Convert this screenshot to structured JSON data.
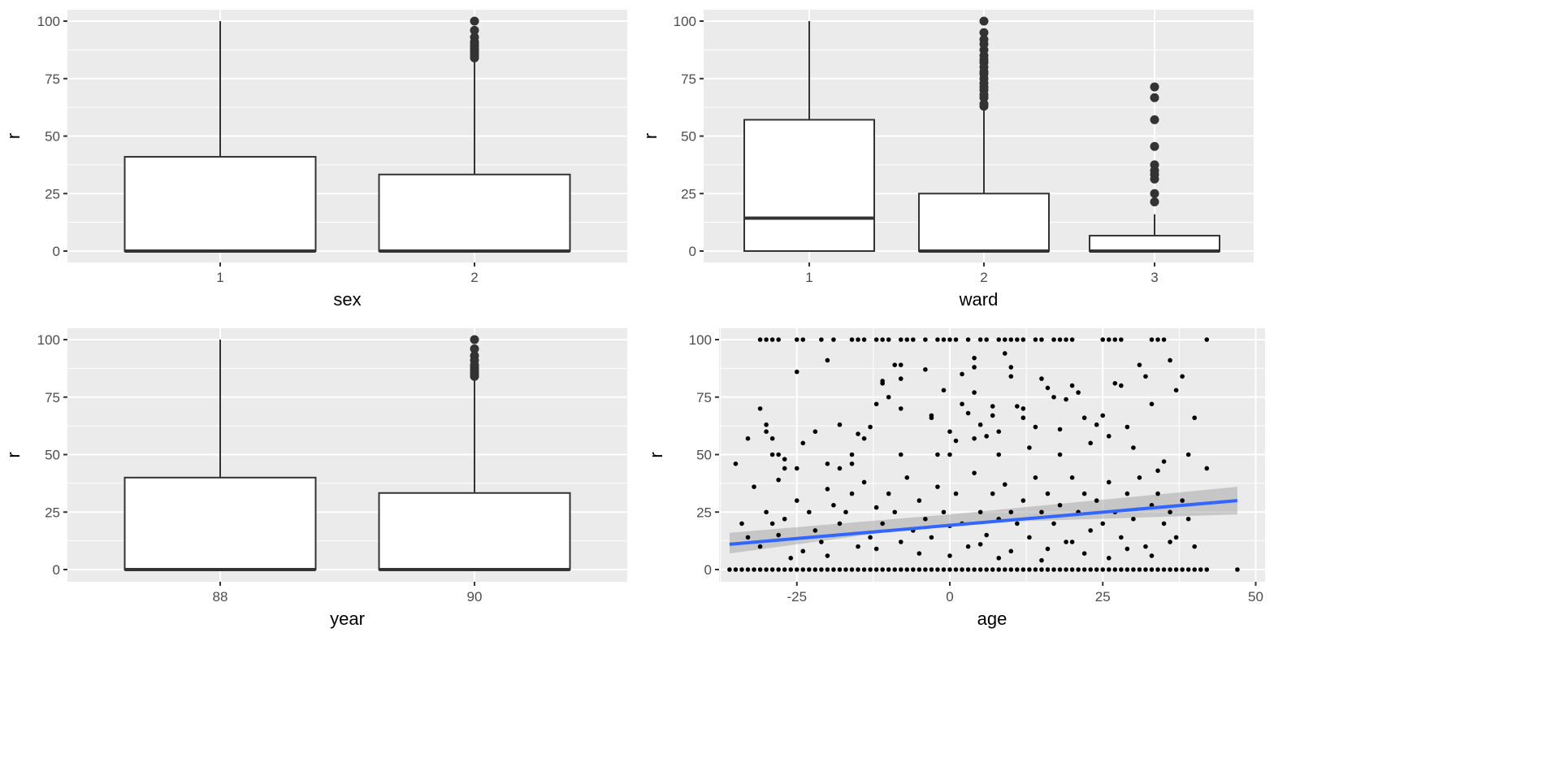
{
  "chart_data": [
    {
      "type": "box",
      "xlabel": "sex",
      "ylabel": "r",
      "ylim": [
        0,
        100
      ],
      "yticks": [
        "0",
        "25",
        "50",
        "75",
        "100"
      ],
      "categories": [
        "1",
        "2"
      ],
      "boxes": [
        {
          "min": 0,
          "q1": 0,
          "median": 0,
          "q3": 41,
          "max": 100,
          "outliers": []
        },
        {
          "min": 0,
          "q1": 0,
          "median": 0,
          "q3": 33.3,
          "max": 83,
          "outliers": [
            84,
            85,
            86,
            87,
            87.5,
            88,
            89,
            90,
            91,
            93,
            96,
            100
          ]
        }
      ]
    },
    {
      "type": "box",
      "xlabel": "ward",
      "ylabel": "r",
      "ylim": [
        0,
        100
      ],
      "yticks": [
        "0",
        "25",
        "50",
        "75",
        "100"
      ],
      "categories": [
        "1",
        "2",
        "3"
      ],
      "boxes": [
        {
          "min": 0,
          "q1": 0,
          "median": 14.3,
          "q3": 57.1,
          "max": 100,
          "outliers": []
        },
        {
          "min": 0,
          "q1": 0,
          "median": 0,
          "q3": 25,
          "max": 62,
          "outliers": [
            63,
            64,
            66.7,
            68,
            70,
            71.4,
            73,
            75,
            77,
            78,
            80,
            82,
            83.3,
            85,
            87.5,
            90,
            92,
            95,
            100
          ]
        },
        {
          "min": 0,
          "q1": 0,
          "median": 0,
          "q3": 6.7,
          "max": 16,
          "outliers": [
            21.4,
            25,
            31.3,
            33.3,
            35,
            37.5,
            45.5,
            57.1,
            66.7,
            71.4
          ]
        }
      ]
    },
    {
      "type": "box",
      "xlabel": "year",
      "ylabel": "r",
      "ylim": [
        0,
        100
      ],
      "yticks": [
        "0",
        "25",
        "50",
        "75",
        "100"
      ],
      "categories": [
        "88",
        "90"
      ],
      "boxes": [
        {
          "min": 0,
          "q1": 0,
          "median": 0,
          "q3": 40,
          "max": 100,
          "outliers": []
        },
        {
          "min": 0,
          "q1": 0,
          "median": 0,
          "q3": 33.3,
          "max": 83,
          "outliers": [
            84,
            85,
            86,
            87,
            88,
            89,
            91,
            93,
            96,
            100
          ]
        }
      ]
    },
    {
      "type": "scatter",
      "xlabel": "age",
      "ylabel": "r",
      "xlim": [
        -38,
        50
      ],
      "ylim": [
        0,
        100
      ],
      "xticks": [
        "-25",
        "0",
        "25",
        "50"
      ],
      "yticks": [
        "0",
        "25",
        "50",
        "75",
        "100"
      ],
      "smooth": {
        "method": "lm",
        "x": [
          -36,
          47
        ],
        "y": [
          11,
          30
        ],
        "ci_low": [
          7,
          24
        ],
        "ci_high": [
          16,
          36
        ],
        "ci_mid": [
          20,
          24
        ],
        "color": "#3366ff"
      },
      "points": [
        [
          -36,
          0
        ],
        [
          -35,
          0
        ],
        [
          -34,
          0
        ],
        [
          -33,
          0
        ],
        [
          -32,
          0
        ],
        [
          -31,
          0
        ],
        [
          -30,
          0
        ],
        [
          -29,
          0
        ],
        [
          -28,
          0
        ],
        [
          -27,
          0
        ],
        [
          -26,
          0
        ],
        [
          -25,
          0
        ],
        [
          -24,
          0
        ],
        [
          -23,
          0
        ],
        [
          -22,
          0
        ],
        [
          -21,
          0
        ],
        [
          -20,
          0
        ],
        [
          -19,
          0
        ],
        [
          -18,
          0
        ],
        [
          -17,
          0
        ],
        [
          -16,
          0
        ],
        [
          -15,
          0
        ],
        [
          -14,
          0
        ],
        [
          -13,
          0
        ],
        [
          -12,
          0
        ],
        [
          -11,
          0
        ],
        [
          -10,
          0
        ],
        [
          -9,
          0
        ],
        [
          -8,
          0
        ],
        [
          -7,
          0
        ],
        [
          -6,
          0
        ],
        [
          -5,
          0
        ],
        [
          -4,
          0
        ],
        [
          -3,
          0
        ],
        [
          -2,
          0
        ],
        [
          -1,
          0
        ],
        [
          0,
          0
        ],
        [
          1,
          0
        ],
        [
          2,
          0
        ],
        [
          3,
          0
        ],
        [
          4,
          0
        ],
        [
          5,
          0
        ],
        [
          6,
          0
        ],
        [
          7,
          0
        ],
        [
          8,
          0
        ],
        [
          9,
          0
        ],
        [
          10,
          0
        ],
        [
          11,
          0
        ],
        [
          12,
          0
        ],
        [
          13,
          0
        ],
        [
          14,
          0
        ],
        [
          15,
          0
        ],
        [
          16,
          0
        ],
        [
          17,
          0
        ],
        [
          18,
          0
        ],
        [
          19,
          0
        ],
        [
          20,
          0
        ],
        [
          21,
          0
        ],
        [
          22,
          0
        ],
        [
          23,
          0
        ],
        [
          24,
          0
        ],
        [
          25,
          0
        ],
        [
          26,
          0
        ],
        [
          27,
          0
        ],
        [
          28,
          0
        ],
        [
          29,
          0
        ],
        [
          30,
          0
        ],
        [
          31,
          0
        ],
        [
          32,
          0
        ],
        [
          33,
          0
        ],
        [
          34,
          0
        ],
        [
          35,
          0
        ],
        [
          36,
          0
        ],
        [
          37,
          0
        ],
        [
          38,
          0
        ],
        [
          39,
          0
        ],
        [
          40,
          0
        ],
        [
          41,
          0
        ],
        [
          42,
          0
        ],
        [
          47,
          0
        ],
        [
          -31,
          100
        ],
        [
          -30,
          100
        ],
        [
          -29,
          100
        ],
        [
          -28,
          100
        ],
        [
          -25,
          100
        ],
        [
          -24,
          100
        ],
        [
          -21,
          100
        ],
        [
          -19,
          100
        ],
        [
          -16,
          100
        ],
        [
          -15,
          100
        ],
        [
          -14,
          100
        ],
        [
          -12,
          100
        ],
        [
          -11,
          100
        ],
        [
          -10,
          100
        ],
        [
          -8,
          100
        ],
        [
          -7,
          100
        ],
        [
          -6,
          100
        ],
        [
          -4,
          100
        ],
        [
          -2,
          100
        ],
        [
          -1,
          100
        ],
        [
          0,
          100
        ],
        [
          1,
          100
        ],
        [
          3,
          100
        ],
        [
          5,
          100
        ],
        [
          6,
          100
        ],
        [
          8,
          100
        ],
        [
          9,
          100
        ],
        [
          10,
          100
        ],
        [
          11,
          100
        ],
        [
          12,
          100
        ],
        [
          14,
          100
        ],
        [
          15,
          100
        ],
        [
          17,
          100
        ],
        [
          18,
          100
        ],
        [
          19,
          100
        ],
        [
          20,
          100
        ],
        [
          25,
          100
        ],
        [
          26,
          100
        ],
        [
          27,
          100
        ],
        [
          28,
          100
        ],
        [
          33,
          100
        ],
        [
          34,
          100
        ],
        [
          35,
          100
        ],
        [
          42,
          100
        ],
        [
          -35,
          46
        ],
        [
          -33,
          57
        ],
        [
          -31,
          70
        ],
        [
          -30,
          63
        ],
        [
          -30,
          60
        ],
        [
          -29,
          50
        ],
        [
          -29,
          57
        ],
        [
          -28,
          50
        ],
        [
          -28,
          39
        ],
        [
          -27,
          48
        ],
        [
          -27,
          44
        ],
        [
          -25,
          44
        ],
        [
          -24,
          55
        ],
        [
          -22,
          60
        ],
        [
          -20,
          91
        ],
        [
          -25,
          86
        ],
        [
          -20,
          46
        ],
        [
          -18,
          63
        ],
        [
          -18,
          44
        ],
        [
          -16,
          50
        ],
        [
          -16,
          46
        ],
        [
          -15,
          59
        ],
        [
          -14,
          57
        ],
        [
          -13,
          62
        ],
        [
          -12,
          72
        ],
        [
          -11,
          81
        ],
        [
          -11,
          82
        ],
        [
          -10,
          75
        ],
        [
          -9,
          89
        ],
        [
          -8,
          89
        ],
        [
          -8,
          70
        ],
        [
          -8,
          50
        ],
        [
          -8,
          83
        ],
        [
          -4,
          87
        ],
        [
          -3,
          67
        ],
        [
          -3,
          66
        ],
        [
          -1,
          78
        ],
        [
          -2,
          50
        ],
        [
          0,
          50
        ],
        [
          0,
          60
        ],
        [
          1,
          56
        ],
        [
          2,
          85
        ],
        [
          2,
          72
        ],
        [
          3,
          68
        ],
        [
          4,
          92
        ],
        [
          4,
          88
        ],
        [
          4,
          77
        ],
        [
          4,
          57
        ],
        [
          5,
          63
        ],
        [
          6,
          58
        ],
        [
          7,
          71
        ],
        [
          7,
          67
        ],
        [
          8,
          60
        ],
        [
          8,
          50
        ],
        [
          9,
          94
        ],
        [
          10,
          88
        ],
        [
          10,
          84
        ],
        [
          11,
          71
        ],
        [
          12,
          70
        ],
        [
          12,
          66
        ],
        [
          13,
          53
        ],
        [
          14,
          62
        ],
        [
          15,
          83
        ],
        [
          16,
          79
        ],
        [
          17,
          75
        ],
        [
          18,
          61
        ],
        [
          18,
          50
        ],
        [
          19,
          74
        ],
        [
          20,
          80
        ],
        [
          21,
          77
        ],
        [
          22,
          66
        ],
        [
          23,
          55
        ],
        [
          24,
          63
        ],
        [
          25,
          67
        ],
        [
          26,
          58
        ],
        [
          27,
          81
        ],
        [
          28,
          80
        ],
        [
          29,
          62
        ],
        [
          30,
          53
        ],
        [
          31,
          89
        ],
        [
          32,
          84
        ],
        [
          33,
          72
        ],
        [
          34,
          43
        ],
        [
          35,
          47
        ],
        [
          36,
          91
        ],
        [
          37,
          78
        ],
        [
          38,
          84
        ],
        [
          39,
          50
        ],
        [
          40,
          66
        ],
        [
          42,
          44
        ],
        [
          -34,
          20
        ],
        [
          -33,
          14
        ],
        [
          -32,
          36
        ],
        [
          -31,
          10
        ],
        [
          -30,
          25
        ],
        [
          -29,
          20
        ],
        [
          -28,
          15
        ],
        [
          -27,
          22
        ],
        [
          -26,
          5
        ],
        [
          -25,
          30
        ],
        [
          -24,
          8
        ],
        [
          -23,
          25
        ],
        [
          -22,
          17
        ],
        [
          -21,
          12
        ],
        [
          -20,
          35
        ],
        [
          -19,
          28
        ],
        [
          -18,
          20
        ],
        [
          -17,
          25
        ],
        [
          -16,
          33
        ],
        [
          -15,
          10
        ],
        [
          -14,
          38
        ],
        [
          -13,
          14
        ],
        [
          -12,
          27
        ],
        [
          -11,
          20
        ],
        [
          -10,
          33
        ],
        [
          -9,
          25
        ],
        [
          -8,
          12
        ],
        [
          -7,
          40
        ],
        [
          -6,
          17
        ],
        [
          -5,
          30
        ],
        [
          -4,
          22
        ],
        [
          -3,
          14
        ],
        [
          -2,
          36
        ],
        [
          -1,
          25
        ],
        [
          0,
          19
        ],
        [
          1,
          33
        ],
        [
          2,
          20
        ],
        [
          3,
          10
        ],
        [
          4,
          42
        ],
        [
          5,
          25
        ],
        [
          6,
          15
        ],
        [
          7,
          33
        ],
        [
          8,
          22
        ],
        [
          9,
          37
        ],
        [
          10,
          25
        ],
        [
          11,
          20
        ],
        [
          12,
          30
        ],
        [
          13,
          14
        ],
        [
          14,
          40
        ],
        [
          15,
          25
        ],
        [
          16,
          33
        ],
        [
          17,
          20
        ],
        [
          18,
          28
        ],
        [
          19,
          12
        ],
        [
          20,
          40
        ],
        [
          21,
          25
        ],
        [
          22,
          33
        ],
        [
          23,
          17
        ],
        [
          24,
          30
        ],
        [
          25,
          20
        ],
        [
          26,
          38
        ],
        [
          27,
          25
        ],
        [
          28,
          14
        ],
        [
          29,
          33
        ],
        [
          30,
          22
        ],
        [
          31,
          40
        ],
        [
          32,
          10
        ],
        [
          33,
          28
        ],
        [
          34,
          33
        ],
        [
          35,
          20
        ],
        [
          36,
          25
        ],
        [
          37,
          14
        ],
        [
          38,
          30
        ],
        [
          39,
          22
        ],
        [
          40,
          10
        ],
        [
          5,
          11
        ],
        [
          8,
          5
        ],
        [
          10,
          8
        ],
        [
          15,
          4
        ],
        [
          16,
          9
        ],
        [
          20,
          12
        ],
        [
          22,
          7
        ],
        [
          26,
          5
        ],
        [
          29,
          9
        ],
        [
          33,
          6
        ],
        [
          36,
          12
        ],
        [
          -20,
          6
        ],
        [
          -12,
          9
        ],
        [
          -5,
          7
        ],
        [
          0,
          6
        ]
      ]
    }
  ]
}
